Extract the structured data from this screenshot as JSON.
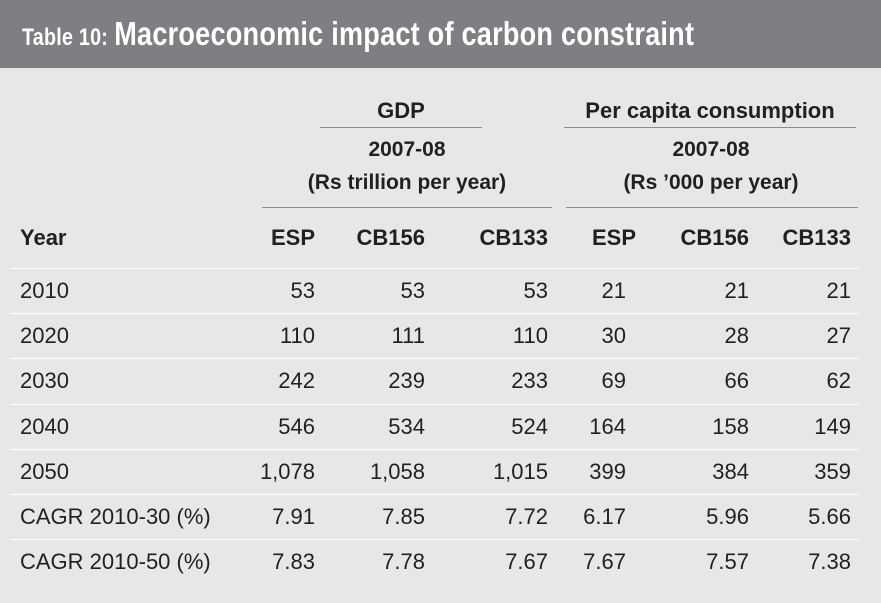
{
  "title": {
    "prefix": "Table 10:",
    "text": "Macroeconomic impact of carbon constraint"
  },
  "groups": [
    {
      "title": "GDP",
      "line1": "2007-08",
      "line2": "(Rs trillion per year)"
    },
    {
      "title": "Per capita consumption",
      "line1": "2007-08",
      "line2": "(Rs ’000 per year)"
    }
  ],
  "columns": {
    "year": "Year",
    "gdp": [
      "ESP",
      "CB156",
      "CB133"
    ],
    "pcc": [
      "ESP",
      "CB156",
      "CB133"
    ]
  },
  "rows": [
    {
      "label": "2010",
      "values": [
        "53",
        "53",
        "53",
        "21",
        "21",
        "21"
      ]
    },
    {
      "label": "2020",
      "values": [
        "110",
        "111",
        "110",
        "30",
        "28",
        "27"
      ]
    },
    {
      "label": "2030",
      "values": [
        "242",
        "239",
        "233",
        "69",
        "66",
        "62"
      ]
    },
    {
      "label": "2040",
      "values": [
        "546",
        "534",
        "524",
        "164",
        "158",
        "149"
      ]
    },
    {
      "label": "2050",
      "values": [
        "1,078",
        "1,058",
        "1,015",
        "399",
        "384",
        "359"
      ]
    },
    {
      "label": "CAGR 2010-30 (%)",
      "values": [
        "7.91",
        "7.85",
        "7.72",
        "6.17",
        "5.96",
        "5.66"
      ]
    },
    {
      "label": "CAGR 2010-50 (%)",
      "values": [
        "7.83",
        "7.78",
        "7.67",
        "7.67",
        "7.57",
        "7.38"
      ]
    }
  ]
}
